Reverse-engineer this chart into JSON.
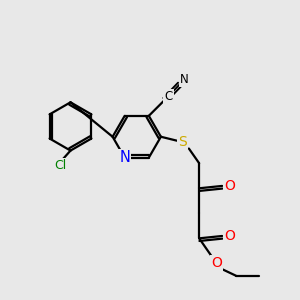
{
  "bg_color": "#e8e8e8",
  "bond_color": "#000000",
  "bond_width": 1.6,
  "atom_colors": {
    "N_pyridine": "#0000ff",
    "S": "#ccaa00",
    "O": "#ff0000",
    "Cl": "#008000",
    "C": "#000000",
    "N_cyano": "#000000"
  },
  "font_size": 8.5
}
